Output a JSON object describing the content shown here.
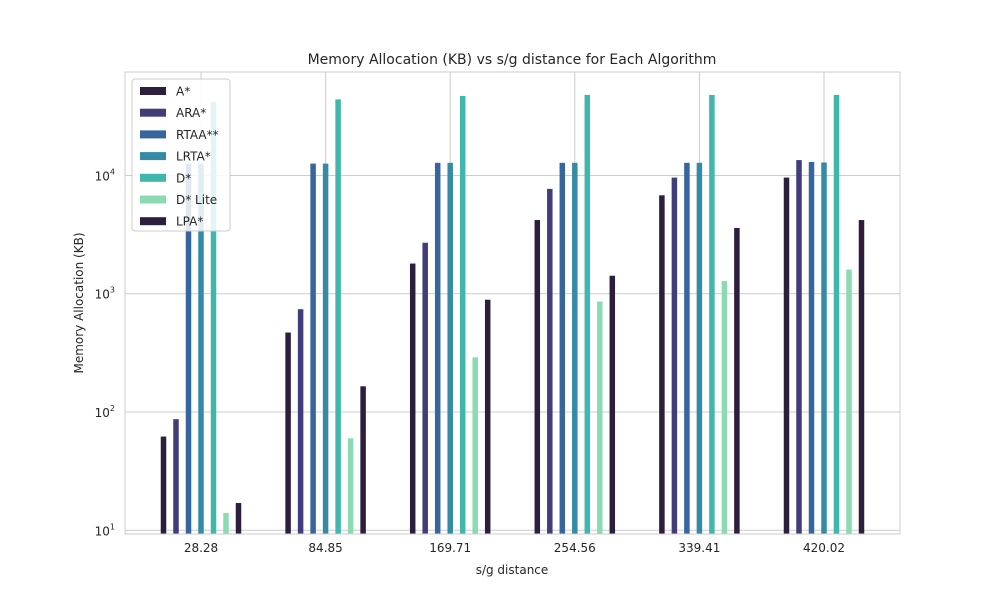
{
  "chart_data": {
    "type": "bar",
    "title": "Memory Allocation (KB) vs s/g distance for Each Algorithm",
    "xlabel": "s/g distance",
    "ylabel": "Memory Allocation (KB)",
    "yscale": "log",
    "ylim": [
      9.3,
      75000
    ],
    "yticks": [
      {
        "base": "10",
        "exp": "1"
      },
      {
        "base": "10",
        "exp": "2"
      },
      {
        "base": "10",
        "exp": "3"
      },
      {
        "base": "10",
        "exp": "4"
      }
    ],
    "grid": true,
    "legend_position": "top-left",
    "categories": [
      "28.28",
      "84.85",
      "169.71",
      "254.56",
      "339.41",
      "420.02"
    ],
    "series": [
      {
        "name": "A*",
        "color": "#2d1e3e",
        "values": [
          62,
          470,
          1800,
          4200,
          6800,
          9600
        ]
      },
      {
        "name": "ARA*",
        "color": "#413d7b",
        "values": [
          87,
          740,
          2700,
          7700,
          9600,
          13500
        ]
      },
      {
        "name": "RTAA**",
        "color": "#37659e",
        "values": [
          12600,
          12600,
          12800,
          12800,
          12800,
          13000
        ]
      },
      {
        "name": "LRTA*",
        "color": "#348ba6",
        "values": [
          12600,
          12600,
          12800,
          12800,
          12800,
          12900
        ]
      },
      {
        "name": "D*",
        "color": "#40b7ad",
        "values": [
          42000,
          44000,
          47000,
          48000,
          48000,
          48000
        ]
      },
      {
        "name": "D* Lite",
        "color": "#8bdab2",
        "values": [
          14,
          60,
          290,
          860,
          1280,
          1600
        ]
      },
      {
        "name": "LPA*",
        "color": "#2d1e3e",
        "values": [
          17,
          165,
          890,
          1420,
          3600,
          4200
        ]
      }
    ]
  }
}
